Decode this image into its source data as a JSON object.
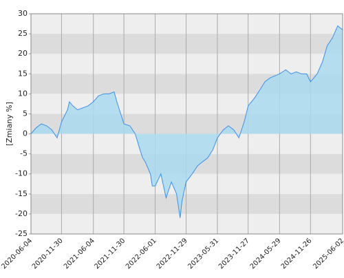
{
  "chart_data": {
    "type": "area",
    "y_label": "[Zmiany %]",
    "x": [
      "2020-06-04",
      "2020-07-04",
      "2020-08-04",
      "2020-09-04",
      "2020-10-04",
      "2020-11-04",
      "2020-11-30",
      "2021-01-04",
      "2021-01-15",
      "2021-02-04",
      "2021-03-04",
      "2021-04-04",
      "2021-05-04",
      "2021-06-04",
      "2021-07-04",
      "2021-08-04",
      "2021-09-04",
      "2021-10-04",
      "2021-10-20",
      "2021-11-04",
      "2021-11-30",
      "2022-01-04",
      "2022-02-04",
      "2022-03-04",
      "2022-03-20",
      "2022-04-04",
      "2022-05-04",
      "2022-05-15",
      "2022-06-01",
      "2022-07-04",
      "2022-08-04",
      "2022-09-04",
      "2022-10-04",
      "2022-10-25",
      "2022-11-04",
      "2022-11-29",
      "2023-01-04",
      "2023-02-04",
      "2023-03-04",
      "2023-04-04",
      "2023-05-04",
      "2023-05-31",
      "2023-07-04",
      "2023-08-04",
      "2023-09-04",
      "2023-10-04",
      "2023-11-04",
      "2023-11-27",
      "2024-01-04",
      "2024-02-04",
      "2024-03-04",
      "2024-04-04",
      "2024-05-29",
      "2024-07-04",
      "2024-08-04",
      "2024-09-04",
      "2024-10-04",
      "2024-11-04",
      "2024-11-26",
      "2025-01-04",
      "2025-02-04",
      "2025-03-04",
      "2025-04-04",
      "2025-05-04",
      "2025-06-02"
    ],
    "values": [
      0,
      1.5,
      2.5,
      2,
      1,
      -1,
      3,
      6,
      8,
      7,
      6,
      6.5,
      7,
      8,
      9.5,
      10,
      10,
      10.5,
      8,
      6,
      2.5,
      2,
      0,
      -4,
      -6,
      -7,
      -10,
      -13,
      -13,
      -10,
      -16,
      -12,
      -15,
      -21,
      -17,
      -12,
      -10,
      -8,
      -7,
      -6,
      -4,
      -1,
      1,
      2,
      1,
      -1,
      3,
      7,
      9,
      11,
      13,
      14,
      15,
      16,
      15,
      15.5,
      15,
      15,
      13,
      15,
      18,
      22,
      24,
      27,
      26
    ],
    "color": "#3d8fe8",
    "fill_color": "#a9d9ee",
    "xlim": [
      "2020-06-04",
      "2025-06-02"
    ],
    "xticks": [
      "2020-06-04",
      "2020-11-30",
      "2021-06-04",
      "2021-11-30",
      "2022-06-01",
      "2022-11-29",
      "2023-05-31",
      "2023-11-27",
      "2024-05-29",
      "2024-11-26",
      "2025-06-02"
    ],
    "ylim": [
      -25,
      30
    ],
    "yticks": [
      -25,
      -20,
      -15,
      -10,
      -5,
      0,
      5,
      10,
      15,
      20,
      25,
      30
    ],
    "grid": true
  }
}
